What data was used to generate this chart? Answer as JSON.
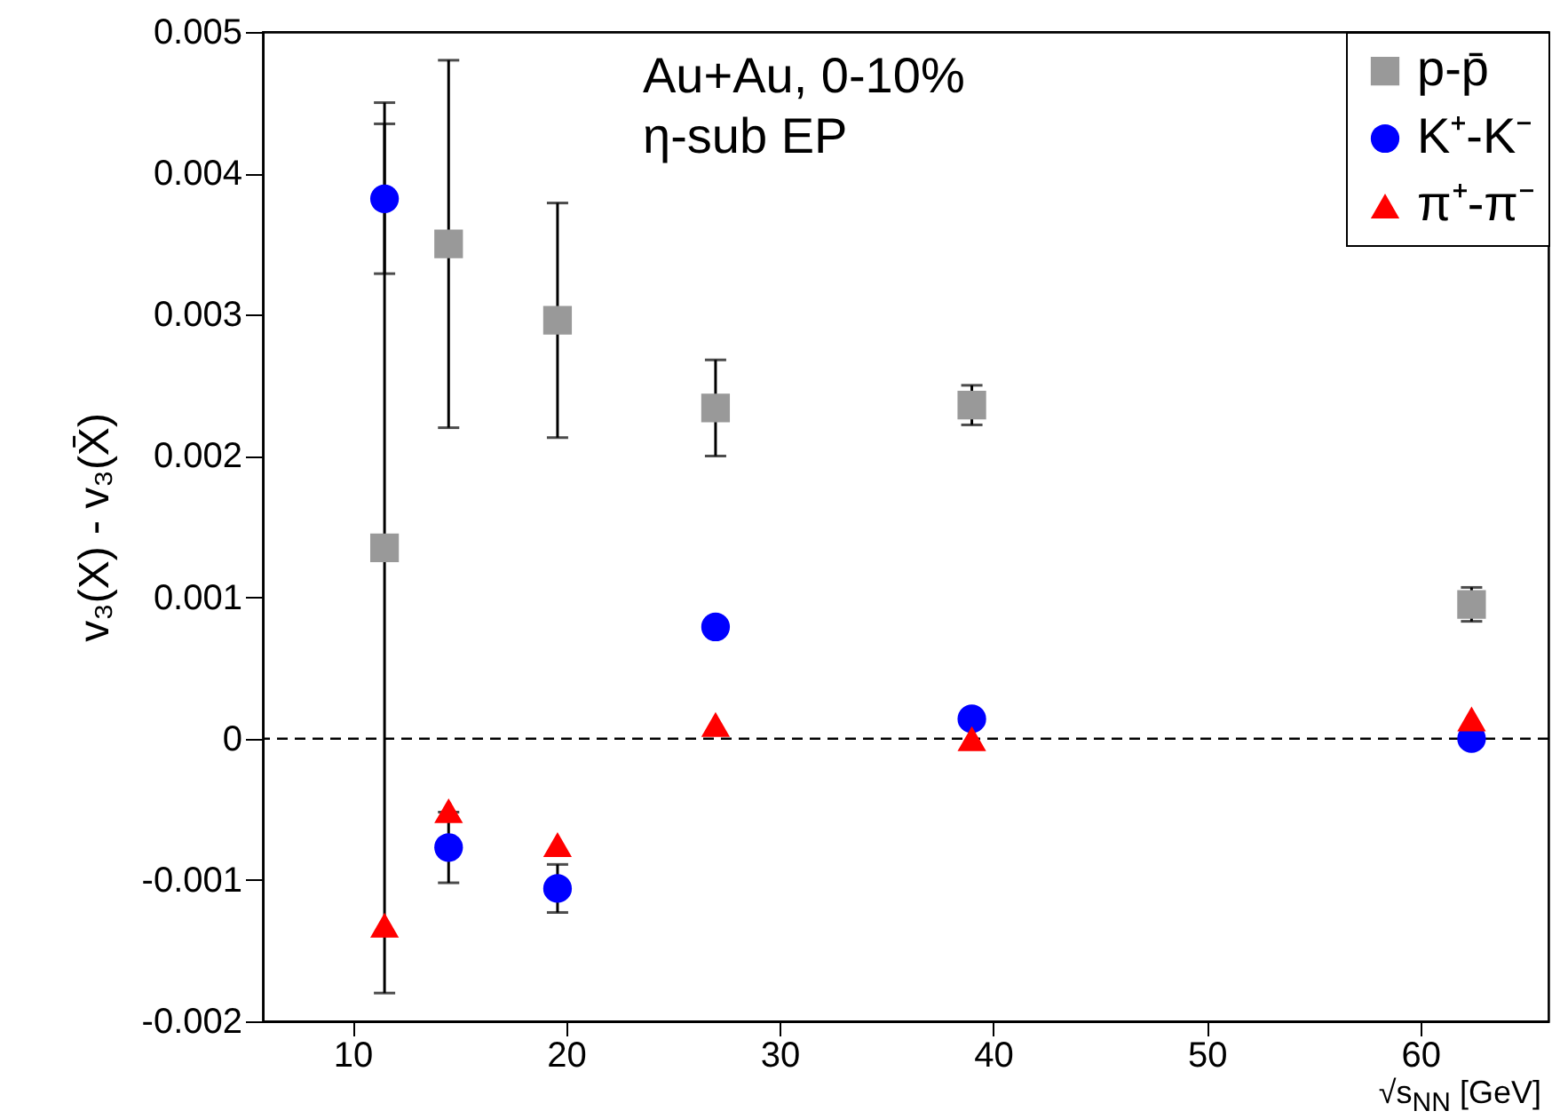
{
  "chart_data": {
    "type": "scatter",
    "xlabel": "√s$_{NN}$ [GeV]",
    "ylabel": "v₃(X) - v₃(X̄)",
    "x": [
      11.5,
      14.5,
      19.6,
      27,
      39,
      62.4
    ],
    "xlim": [
      5.8,
      66
    ],
    "xticks": [
      10,
      20,
      30,
      40,
      50,
      60
    ],
    "ylim": [
      -0.002,
      0.005
    ],
    "yticks": [
      -0.002,
      -0.001,
      0,
      0.001,
      0.002,
      0.003,
      0.004,
      0.005
    ],
    "grid": false,
    "legend": "top right",
    "series": [
      {
        "name": "p-p̄",
        "color": "#999999",
        "marker": "square",
        "values": [
          0.00135,
          0.0035,
          0.00296,
          0.00234,
          0.00236,
          0.00095
        ],
        "errors": [
          0.00315,
          0.0013,
          0.00083,
          0.00034,
          0.00014,
          0.00012
        ]
      },
      {
        "name": "K⁺-K⁻",
        "color": "#0000ff",
        "marker": "circle",
        "values": [
          0.00382,
          -0.00077,
          -0.00106,
          0.00079,
          0.00014,
          0
        ],
        "errors": [
          0.00053,
          0.00025,
          0.00017,
          null,
          null,
          null
        ]
      },
      {
        "name": "π⁺-π⁻",
        "color": "#ff0000",
        "marker": "triangle",
        "values": [
          -0.00132,
          -0.00051,
          -0.00075,
          0.0001,
          0,
          0.00014
        ]
      }
    ],
    "ref_lines": [
      {
        "axis": "y",
        "value": 0,
        "line_style": "dashed",
        "color": "#000000"
      }
    ],
    "annotations": [
      "Au+Au, 0-10%",
      "η-sub EP"
    ]
  }
}
